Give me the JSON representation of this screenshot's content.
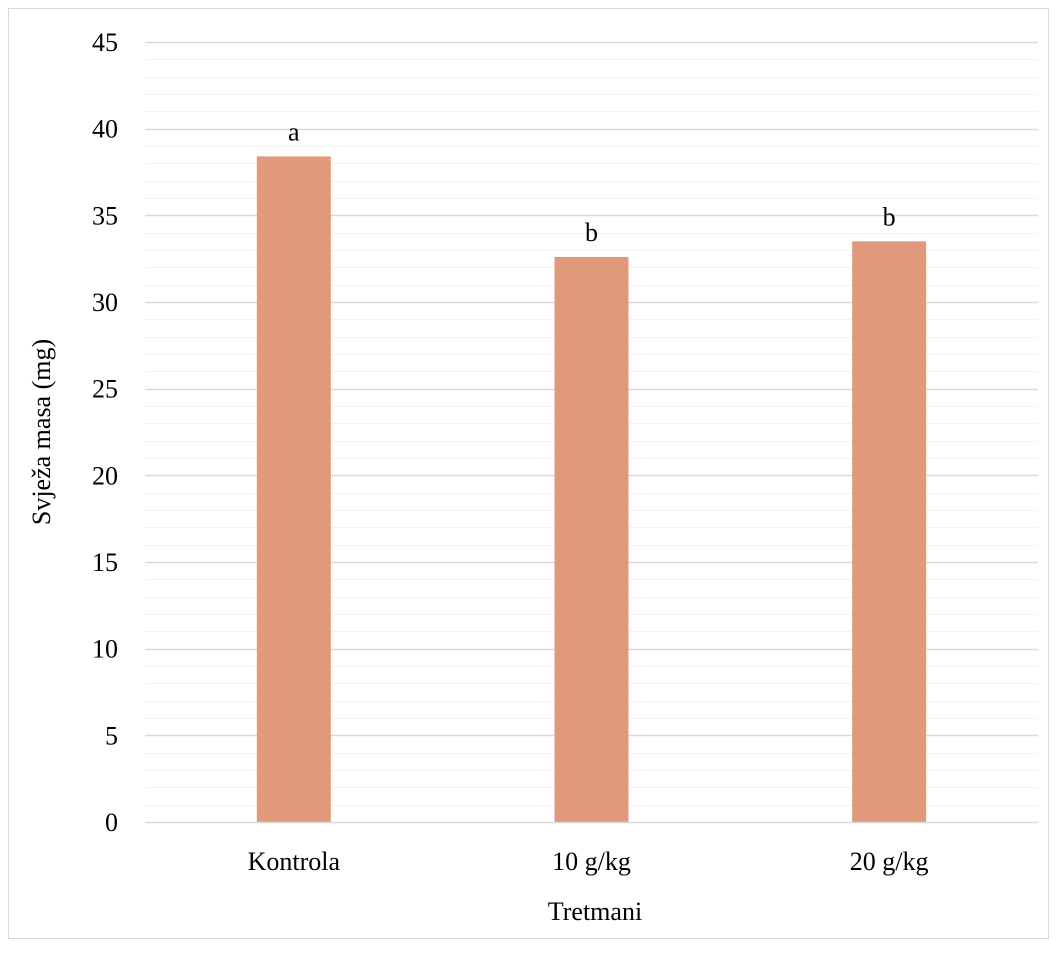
{
  "chart_data": {
    "type": "bar",
    "categories": [
      "Kontrola",
      "10 g/kg",
      "20 g/kg"
    ],
    "values": [
      38.4,
      32.6,
      33.5
    ],
    "data_labels": [
      "a",
      "b",
      "b"
    ],
    "title": "",
    "xlabel": "Tretmani",
    "ylabel": "Svježa masa (mg)",
    "ylim": [
      0,
      45
    ],
    "y_ticks": [
      0,
      5,
      10,
      15,
      20,
      25,
      30,
      35,
      40,
      45
    ],
    "minor_step": 1,
    "grid": true,
    "legend": "none",
    "colors": {
      "bar": "#E0997A",
      "major_grid": "#D9D9D9",
      "minor_grid": "#F2F2F2",
      "border": "#D9D9D9",
      "text": "#000000"
    }
  }
}
